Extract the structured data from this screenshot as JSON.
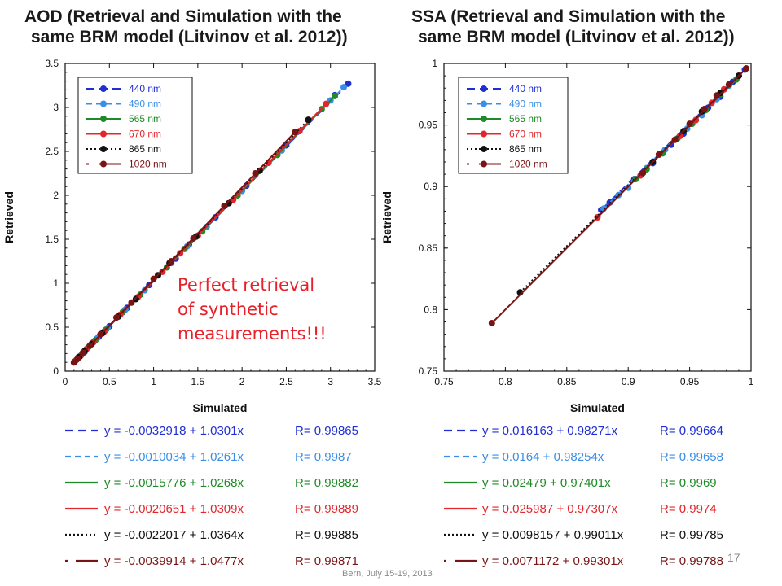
{
  "chart_data": [
    {
      "type": "scatter",
      "title_lines": [
        "AOD (Retrieval and Simulation with the",
        "same BRM model (Litvinov et al. 2012))"
      ],
      "xlabel": "Simulated",
      "ylabel": "Retrieved",
      "xlim": [
        0,
        3.5
      ],
      "ylim": [
        0,
        3.5
      ],
      "xticks": [
        "0",
        "0.5",
        "1",
        "1.5",
        "2",
        "2.5",
        "3",
        "3.5"
      ],
      "yticks": [
        "0",
        "0.5",
        "1",
        "1.5",
        "2",
        "2.5",
        "3",
        "3.5"
      ],
      "legend_position": "top-left",
      "series": [
        {
          "name": "440 nm",
          "color": "#1f2fd4",
          "line_style": "long-dash",
          "x": [
            0.15,
            0.22,
            0.3,
            0.38,
            0.5,
            0.7,
            0.95,
            1.25,
            1.4,
            1.7,
            2.05,
            2.5,
            3.05,
            3.2
          ],
          "y": [
            0.16,
            0.22,
            0.31,
            0.39,
            0.51,
            0.72,
            0.98,
            1.28,
            1.44,
            1.75,
            2.11,
            2.57,
            3.14,
            3.27
          ],
          "fit": "y = -0.0032918 + 1.0301x",
          "r": "R= 0.99865"
        },
        {
          "name": "490 nm",
          "color": "#3b8ee8",
          "line_style": "dash",
          "x": [
            0.13,
            0.2,
            0.28,
            0.36,
            0.48,
            0.68,
            0.9,
            1.2,
            1.38,
            1.6,
            2.0,
            2.45,
            3.0,
            3.15
          ],
          "y": [
            0.13,
            0.2,
            0.29,
            0.37,
            0.49,
            0.7,
            0.92,
            1.23,
            1.42,
            1.64,
            2.05,
            2.51,
            3.08,
            3.23
          ],
          "fit": "y = -0.0010034 + 1.0261x",
          "r": "R= 0.9987"
        },
        {
          "name": "565 nm",
          "color": "#1f8a26",
          "line_style": "solid",
          "x": [
            0.12,
            0.18,
            0.26,
            0.34,
            0.46,
            0.65,
            0.85,
            1.15,
            1.35,
            1.55,
            1.95,
            2.4,
            2.9,
            3.05
          ],
          "y": [
            0.12,
            0.18,
            0.27,
            0.35,
            0.47,
            0.67,
            0.87,
            1.18,
            1.39,
            1.59,
            2.0,
            2.46,
            2.98,
            3.13
          ],
          "fit": "y = -0.0015776 + 1.0268x",
          "r": "R= 0.99882"
        },
        {
          "name": "670 nm",
          "color": "#e3262b",
          "line_style": "solid",
          "x": [
            0.11,
            0.17,
            0.24,
            0.32,
            0.44,
            0.62,
            0.82,
            1.1,
            1.3,
            1.5,
            1.9,
            2.3,
            2.65,
            2.95
          ],
          "y": [
            0.11,
            0.17,
            0.25,
            0.33,
            0.45,
            0.64,
            0.84,
            1.13,
            1.34,
            1.54,
            1.95,
            2.37,
            2.73,
            3.04
          ],
          "fit": "y = -0.0020651 + 1.0309x",
          "r": "R= 0.99889"
        },
        {
          "name": "865 nm",
          "color": "#111111",
          "line_style": "dotted",
          "x": [
            0.1,
            0.16,
            0.22,
            0.3,
            0.42,
            0.6,
            0.8,
            1.05,
            1.18,
            1.48,
            1.85,
            2.2,
            2.75
          ],
          "y": [
            0.1,
            0.16,
            0.23,
            0.31,
            0.43,
            0.62,
            0.82,
            1.09,
            1.23,
            1.53,
            1.91,
            2.28,
            2.86
          ],
          "fit": "y = -0.0022017 + 1.0364x",
          "r": "R= 0.99885"
        },
        {
          "name": "1020 nm",
          "color": "#7a1414",
          "line_style": "dash-solid",
          "x": [
            0.1,
            0.14,
            0.2,
            0.28,
            0.4,
            0.58,
            0.75,
            1.0,
            1.2,
            1.45,
            1.8,
            2.15,
            2.6
          ],
          "y": [
            0.1,
            0.14,
            0.21,
            0.29,
            0.42,
            0.61,
            0.78,
            1.05,
            1.25,
            1.51,
            1.88,
            2.25,
            2.72
          ],
          "fit": "y = -0.0039914 + 1.0477x",
          "r": "R= 0.99871"
        }
      ]
    },
    {
      "type": "scatter",
      "title_lines": [
        "SSA (Retrieval and Simulation with the",
        "same BRM model (Litvinov et al. 2012))"
      ],
      "xlabel": "Simulated",
      "ylabel": "Retrieved",
      "xlim": [
        0.75,
        1
      ],
      "ylim": [
        0.75,
        1
      ],
      "xticks": [
        "0.75",
        "0.8",
        "0.85",
        "0.9",
        "0.95",
        "1"
      ],
      "yticks": [
        "0.75",
        "0.8",
        "0.85",
        "0.9",
        "0.95",
        "1"
      ],
      "legend_position": "top-left",
      "series": [
        {
          "name": "440 nm",
          "color": "#1f2fd4",
          "line_style": "long-dash",
          "x": [
            0.878,
            0.885,
            0.905,
            0.92,
            0.935,
            0.945,
            0.955,
            0.965,
            0.975,
            0.985,
            0.995
          ],
          "y": [
            0.881,
            0.887,
            0.906,
            0.919,
            0.934,
            0.943,
            0.954,
            0.964,
            0.973,
            0.985,
            0.995
          ],
          "fit": "y = 0.016163 + 0.98271x",
          "r": "R= 0.99664"
        },
        {
          "name": "490 nm",
          "color": "#3b8ee8",
          "line_style": "dash",
          "x": [
            0.88,
            0.892,
            0.9,
            0.915,
            0.93,
            0.948,
            0.96,
            0.972,
            0.982
          ],
          "y": [
            0.882,
            0.893,
            0.899,
            0.915,
            0.93,
            0.947,
            0.958,
            0.971,
            0.982
          ],
          "fit": "y = 0.0164 + 0.98254x",
          "r": "R= 0.99658"
        },
        {
          "name": "565 nm",
          "color": "#1f8a26",
          "line_style": "solid",
          "x": [
            0.906,
            0.915,
            0.928,
            0.94,
            0.952,
            0.963,
            0.975,
            0.988
          ],
          "y": [
            0.906,
            0.914,
            0.927,
            0.939,
            0.951,
            0.962,
            0.975,
            0.987
          ],
          "fit": "y = 0.02479 + 0.97401x",
          "r": "R= 0.9969"
        },
        {
          "name": "670 nm",
          "color": "#e3262b",
          "line_style": "solid",
          "x": [
            0.875,
            0.91,
            0.925,
            0.942,
            0.955,
            0.968,
            0.978,
            0.99
          ],
          "y": [
            0.875,
            0.909,
            0.926,
            0.941,
            0.954,
            0.968,
            0.979,
            0.99
          ],
          "fit": "y = 0.025987 + 0.97307x",
          "r": "R= 0.9974"
        },
        {
          "name": "865 nm",
          "color": "#111111",
          "line_style": "dotted",
          "x": [
            0.812,
            0.92,
            0.945,
            0.96,
            0.975,
            0.99
          ],
          "y": [
            0.814,
            0.92,
            0.945,
            0.961,
            0.976,
            0.99
          ],
          "fit": "y = 0.0098157 + 0.99011x",
          "r": "R= 0.99785"
        },
        {
          "name": "1020 nm",
          "color": "#7a1414",
          "line_style": "dash-solid",
          "x": [
            0.789,
            0.912,
            0.925,
            0.938,
            0.95,
            0.962,
            0.972,
            0.982,
            0.996
          ],
          "y": [
            0.789,
            0.911,
            0.926,
            0.938,
            0.951,
            0.963,
            0.974,
            0.983,
            0.996
          ],
          "fit": "y = 0.0071172 + 0.99301x",
          "r": "R= 0.99788"
        }
      ]
    }
  ],
  "annotation_lines": [
    "Perfect retrieval",
    "of synthetic",
    "measurements!!!"
  ],
  "footer": "Bern, July 15-19, 2013",
  "page_number": "17"
}
